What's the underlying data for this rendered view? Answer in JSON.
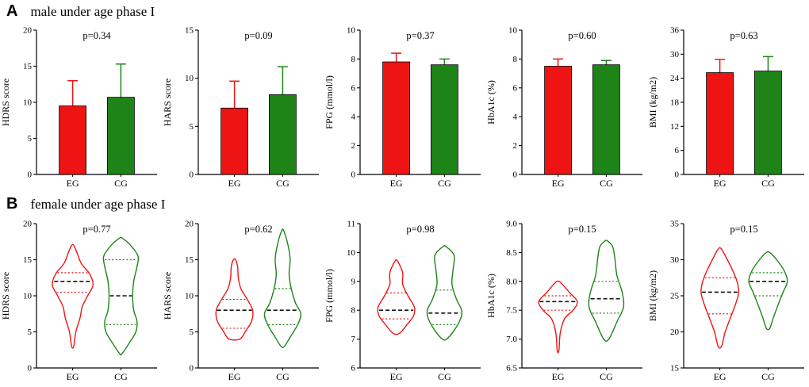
{
  "figure": {
    "panels": [
      {
        "label": "A",
        "title": "male under age phase I"
      },
      {
        "label": "B",
        "title": "female under age phase I"
      }
    ]
  },
  "colors": {
    "eg": "#ee1414",
    "cg": "#1e8418"
  },
  "chart_data": [
    {
      "panel": "A",
      "type": "bar",
      "title": "p=0.34",
      "p_label": "p=0.34",
      "ylabel": "HDRS score",
      "ylim": [
        0,
        20
      ],
      "yticks": [
        {
          "v": 0,
          "label": "0"
        },
        {
          "v": 5,
          "label": "5"
        },
        {
          "v": 10,
          "label": "10"
        },
        {
          "v": 15,
          "label": "15"
        },
        {
          "v": 20,
          "label": "20"
        }
      ],
      "categories": [
        "EG",
        "CG"
      ],
      "series": [
        {
          "name": "EG",
          "color_key": "eg",
          "mean": 9.5,
          "sd_top": 13.0
        },
        {
          "name": "CG",
          "color_key": "cg",
          "mean": 10.7,
          "sd_top": 15.3
        }
      ]
    },
    {
      "panel": "A",
      "type": "bar",
      "title": "p=0.09",
      "p_label": "p=0.09",
      "ylabel": "HARS score",
      "ylim": [
        0,
        15
      ],
      "yticks": [
        {
          "v": 0,
          "label": "0"
        },
        {
          "v": 5,
          "label": "5"
        },
        {
          "v": 10,
          "label": "10"
        },
        {
          "v": 15,
          "label": "15"
        }
      ],
      "categories": [
        "EG",
        "CG"
      ],
      "series": [
        {
          "name": "EG",
          "color_key": "eg",
          "mean": 6.9,
          "sd_top": 9.7
        },
        {
          "name": "CG",
          "color_key": "cg",
          "mean": 8.3,
          "sd_top": 11.2
        }
      ]
    },
    {
      "panel": "A",
      "type": "bar",
      "title": "p=0.37",
      "p_label": "p=0.37",
      "ylabel": "FPG (mmol/l)",
      "ylim": [
        0,
        10
      ],
      "yticks": [
        {
          "v": 0,
          "label": "0"
        },
        {
          "v": 2,
          "label": "2"
        },
        {
          "v": 4,
          "label": "4"
        },
        {
          "v": 6,
          "label": "6"
        },
        {
          "v": 8,
          "label": "8"
        },
        {
          "v": 10,
          "label": "10"
        }
      ],
      "categories": [
        "EG",
        "CG"
      ],
      "series": [
        {
          "name": "EG",
          "color_key": "eg",
          "mean": 7.8,
          "sd_top": 8.4
        },
        {
          "name": "CG",
          "color_key": "cg",
          "mean": 7.6,
          "sd_top": 8.0
        }
      ]
    },
    {
      "panel": "A",
      "type": "bar",
      "title": "p=0.60",
      "p_label": "p=0.60",
      "ylabel": "HbA1c (%)",
      "ylim": [
        0,
        10
      ],
      "yticks": [
        {
          "v": 0,
          "label": "0"
        },
        {
          "v": 2,
          "label": "2"
        },
        {
          "v": 4,
          "label": "4"
        },
        {
          "v": 6,
          "label": "6"
        },
        {
          "v": 8,
          "label": "8"
        },
        {
          "v": 10,
          "label": "10"
        }
      ],
      "categories": [
        "EG",
        "CG"
      ],
      "series": [
        {
          "name": "EG",
          "color_key": "eg",
          "mean": 7.5,
          "sd_top": 8.0
        },
        {
          "name": "CG",
          "color_key": "cg",
          "mean": 7.6,
          "sd_top": 7.9
        }
      ]
    },
    {
      "panel": "A",
      "type": "bar",
      "title": "p=0.63",
      "p_label": "p=0.63",
      "ylabel": "BMI (kg/m2)",
      "ylim": [
        0,
        36
      ],
      "yticks": [
        {
          "v": 0,
          "label": "0"
        },
        {
          "v": 6,
          "label": "6"
        },
        {
          "v": 12,
          "label": "12"
        },
        {
          "v": 18,
          "label": "18"
        },
        {
          "v": 24,
          "label": "24"
        },
        {
          "v": 30,
          "label": "30"
        },
        {
          "v": 36,
          "label": "36"
        }
      ],
      "categories": [
        "EG",
        "CG"
      ],
      "series": [
        {
          "name": "EG",
          "color_key": "eg",
          "mean": 25.4,
          "sd_top": 28.7
        },
        {
          "name": "CG",
          "color_key": "cg",
          "mean": 25.8,
          "sd_top": 29.4
        }
      ]
    },
    {
      "panel": "B",
      "type": "violin",
      "title": "p=0.77",
      "p_label": "p=0.77",
      "ylabel": "HDRS score",
      "ylim": [
        0,
        20
      ],
      "yticks": [
        {
          "v": 0,
          "label": "0"
        },
        {
          "v": 5,
          "label": "5"
        },
        {
          "v": 10,
          "label": "10"
        },
        {
          "v": 15,
          "label": "15"
        },
        {
          "v": 20,
          "label": "20"
        }
      ],
      "categories": [
        "EG",
        "CG"
      ],
      "series": [
        {
          "name": "EG",
          "color_key": "eg",
          "min": 3,
          "max": 17,
          "median": 12,
          "q1": 10.5,
          "q3": 13.2,
          "profile": [
            [
              3,
              0.05
            ],
            [
              5,
              0.15
            ],
            [
              7,
              0.35
            ],
            [
              8.5,
              0.45
            ],
            [
              10,
              0.7
            ],
            [
              11.5,
              0.95
            ],
            [
              13,
              0.8
            ],
            [
              14.5,
              0.4
            ],
            [
              16,
              0.2
            ],
            [
              17,
              0.05
            ]
          ]
        },
        {
          "name": "CG",
          "color_key": "cg",
          "min": 2,
          "max": 18,
          "median": 10,
          "q1": 6,
          "q3": 15,
          "profile": [
            [
              2,
              0.06
            ],
            [
              3.5,
              0.4
            ],
            [
              5,
              0.7
            ],
            [
              6.5,
              0.75
            ],
            [
              8,
              0.6
            ],
            [
              10,
              0.55
            ],
            [
              12,
              0.6
            ],
            [
              14,
              0.75
            ],
            [
              15.5,
              0.8
            ],
            [
              17,
              0.45
            ],
            [
              18,
              0.06
            ]
          ]
        }
      ]
    },
    {
      "panel": "B",
      "type": "violin",
      "title": "p=0.62",
      "p_label": "p=0.62",
      "ylabel": "HARS score",
      "ylim": [
        0,
        20
      ],
      "yticks": [
        {
          "v": 0,
          "label": "0"
        },
        {
          "v": 5,
          "label": "5"
        },
        {
          "v": 10,
          "label": "10"
        },
        {
          "v": 15,
          "label": "15"
        },
        {
          "v": 20,
          "label": "20"
        }
      ],
      "categories": [
        "EG",
        "CG"
      ],
      "series": [
        {
          "name": "EG",
          "color_key": "eg",
          "min": 4,
          "max": 15,
          "median": 8,
          "q1": 5.5,
          "q3": 9.5,
          "profile": [
            [
              4,
              0.25
            ],
            [
              5,
              0.5
            ],
            [
              6.5,
              0.8
            ],
            [
              8,
              0.85
            ],
            [
              9.5,
              0.6
            ],
            [
              11,
              0.3
            ],
            [
              12.5,
              0.18
            ],
            [
              14,
              0.15
            ],
            [
              15,
              0.05
            ]
          ]
        },
        {
          "name": "CG",
          "color_key": "cg",
          "min": 3,
          "max": 19,
          "median": 8,
          "q1": 6,
          "q3": 11,
          "profile": [
            [
              3,
              0.08
            ],
            [
              4.5,
              0.4
            ],
            [
              6,
              0.7
            ],
            [
              7.5,
              0.85
            ],
            [
              9,
              0.6
            ],
            [
              11,
              0.4
            ],
            [
              13,
              0.3
            ],
            [
              15,
              0.35
            ],
            [
              17,
              0.25
            ],
            [
              19,
              0.05
            ]
          ]
        }
      ]
    },
    {
      "panel": "B",
      "type": "violin",
      "title": "p=0.98",
      "p_label": "p=0.98",
      "ylabel": "FPG (mmol/l)",
      "ylim": [
        6,
        11
      ],
      "yticks": [
        {
          "v": 6,
          "label": "6"
        },
        {
          "v": 7,
          "label": "7"
        },
        {
          "v": 8,
          "label": "8"
        },
        {
          "v": 9,
          "label": "9"
        },
        {
          "v": 10,
          "label": "10"
        },
        {
          "v": 11,
          "label": "11"
        }
      ],
      "categories": [
        "EG",
        "CG"
      ],
      "series": [
        {
          "name": "EG",
          "color_key": "eg",
          "min": 7.2,
          "max": 9.7,
          "median": 8.0,
          "q1": 7.7,
          "q3": 8.6,
          "profile": [
            [
              7.2,
              0.15
            ],
            [
              7.5,
              0.5
            ],
            [
              7.8,
              0.8
            ],
            [
              8.1,
              0.85
            ],
            [
              8.5,
              0.55
            ],
            [
              8.9,
              0.3
            ],
            [
              9.3,
              0.3
            ],
            [
              9.7,
              0.06
            ]
          ]
        },
        {
          "name": "CG",
          "color_key": "cg",
          "min": 7.0,
          "max": 10.2,
          "median": 7.9,
          "q1": 7.5,
          "q3": 8.7,
          "profile": [
            [
              7.0,
              0.1
            ],
            [
              7.3,
              0.45
            ],
            [
              7.7,
              0.75
            ],
            [
              8.0,
              0.8
            ],
            [
              8.4,
              0.55
            ],
            [
              8.9,
              0.35
            ],
            [
              9.4,
              0.4
            ],
            [
              9.9,
              0.45
            ],
            [
              10.2,
              0.08
            ]
          ]
        }
      ]
    },
    {
      "panel": "B",
      "type": "violin",
      "title": "p=0.15",
      "p_label": "p=0.15",
      "ylabel": "HbA1c (%)",
      "ylim": [
        6.5,
        9.0
      ],
      "yticks": [
        {
          "v": 6.5,
          "label": "6.5"
        },
        {
          "v": 7.0,
          "label": "7.0"
        },
        {
          "v": 7.5,
          "label": "7.5"
        },
        {
          "v": 8.0,
          "label": "8.0"
        },
        {
          "v": 8.5,
          "label": "8.5"
        },
        {
          "v": 9.0,
          "label": "9.0"
        }
      ],
      "categories": [
        "EG",
        "CG"
      ],
      "series": [
        {
          "name": "EG",
          "color_key": "eg",
          "min": 6.8,
          "max": 8.0,
          "median": 7.65,
          "q1": 7.5,
          "q3": 7.75,
          "profile": [
            [
              6.8,
              0.04
            ],
            [
              7.1,
              0.1
            ],
            [
              7.35,
              0.3
            ],
            [
              7.5,
              0.7
            ],
            [
              7.65,
              0.9
            ],
            [
              7.8,
              0.55
            ],
            [
              7.95,
              0.2
            ],
            [
              8.0,
              0.05
            ]
          ]
        },
        {
          "name": "CG",
          "color_key": "cg",
          "min": 7.0,
          "max": 8.7,
          "median": 7.7,
          "q1": 7.45,
          "q3": 8.0,
          "profile": [
            [
              7.0,
              0.12
            ],
            [
              7.3,
              0.5
            ],
            [
              7.55,
              0.8
            ],
            [
              7.8,
              0.75
            ],
            [
              8.1,
              0.5
            ],
            [
              8.4,
              0.4
            ],
            [
              8.6,
              0.3
            ],
            [
              8.7,
              0.06
            ]
          ]
        }
      ]
    },
    {
      "panel": "B",
      "type": "violin",
      "title": "p=0.15",
      "p_label": "p=0.15",
      "ylabel": "BMI (kg/m2)",
      "ylim": [
        15,
        35
      ],
      "yticks": [
        {
          "v": 15,
          "label": "15"
        },
        {
          "v": 20,
          "label": "20"
        },
        {
          "v": 25,
          "label": "25"
        },
        {
          "v": 30,
          "label": "30"
        },
        {
          "v": 35,
          "label": "35"
        }
      ],
      "categories": [
        "EG",
        "CG"
      ],
      "series": [
        {
          "name": "EG",
          "color_key": "eg",
          "min": 18,
          "max": 31.5,
          "median": 25.5,
          "q1": 22.5,
          "q3": 27.5,
          "profile": [
            [
              18,
              0.08
            ],
            [
              20,
              0.25
            ],
            [
              22,
              0.5
            ],
            [
              24,
              0.75
            ],
            [
              25.5,
              0.88
            ],
            [
              27,
              0.8
            ],
            [
              28.5,
              0.6
            ],
            [
              30,
              0.35
            ],
            [
              31.5,
              0.07
            ]
          ]
        },
        {
          "name": "CG",
          "color_key": "cg",
          "min": 20.5,
          "max": 31,
          "median": 27,
          "q1": 25,
          "q3": 28.2,
          "profile": [
            [
              20.5,
              0.08
            ],
            [
              22,
              0.25
            ],
            [
              24,
              0.5
            ],
            [
              25.5,
              0.7
            ],
            [
              27,
              0.9
            ],
            [
              28.5,
              0.75
            ],
            [
              30,
              0.4
            ],
            [
              31,
              0.08
            ]
          ]
        }
      ]
    }
  ]
}
